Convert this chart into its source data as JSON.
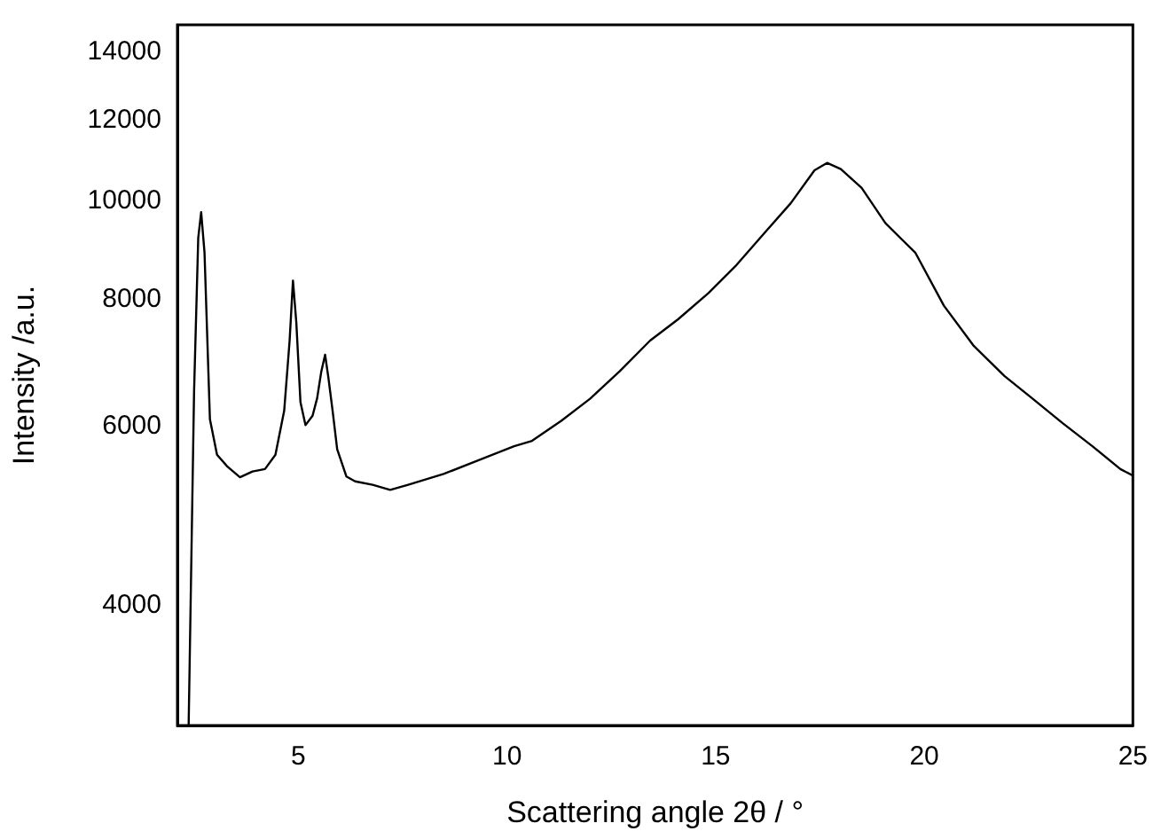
{
  "chart_data": {
    "type": "line",
    "xlabel": "Scattering angle 2θ / °",
    "ylabel": "Intensity /a.u.",
    "log": "y",
    "grid": false,
    "legend": false,
    "marker": "none",
    "line_style": "solid",
    "xlim": [
      2.1,
      25
    ],
    "xticks": [
      5,
      10,
      15,
      20,
      25
    ],
    "ylim": [
      3050,
      14900
    ],
    "yticks": [
      4000,
      6000,
      8000,
      10000,
      12000,
      14000
    ],
    "series": [
      {
        "color": "#000000",
        "x": [
          2.37,
          2.5,
          2.6,
          2.67,
          2.75,
          2.88,
          3.05,
          3.3,
          3.6,
          3.9,
          4.2,
          4.45,
          4.66,
          4.79,
          4.87,
          4.95,
          5.05,
          5.17,
          5.34,
          5.45,
          5.55,
          5.64,
          5.72,
          5.82,
          5.93,
          6.15,
          6.36,
          6.78,
          7.2,
          7.63,
          8.48,
          9.32,
          10.17,
          10.6,
          11.3,
          11.99,
          12.7,
          13.43,
          14.1,
          14.83,
          15.5,
          16.23,
          16.8,
          17.37,
          17.67,
          18.0,
          18.5,
          19.07,
          19.79,
          20.47,
          21.19,
          21.92,
          22.6,
          23.31,
          24.03,
          24.7,
          25.0
        ],
        "values": [
          3050,
          6500,
          9200,
          9750,
          8900,
          6100,
          5630,
          5480,
          5350,
          5420,
          5450,
          5630,
          6220,
          7290,
          8350,
          7600,
          6340,
          6020,
          6150,
          6400,
          6800,
          7060,
          6700,
          6220,
          5700,
          5360,
          5300,
          5260,
          5200,
          5260,
          5390,
          5560,
          5740,
          5810,
          6080,
          6390,
          6800,
          7290,
          7650,
          8120,
          8650,
          9360,
          9950,
          10720,
          10900,
          10750,
          10300,
          9510,
          8890,
          7890,
          7200,
          6730,
          6390,
          6050,
          5740,
          5450,
          5370
        ]
      }
    ]
  }
}
